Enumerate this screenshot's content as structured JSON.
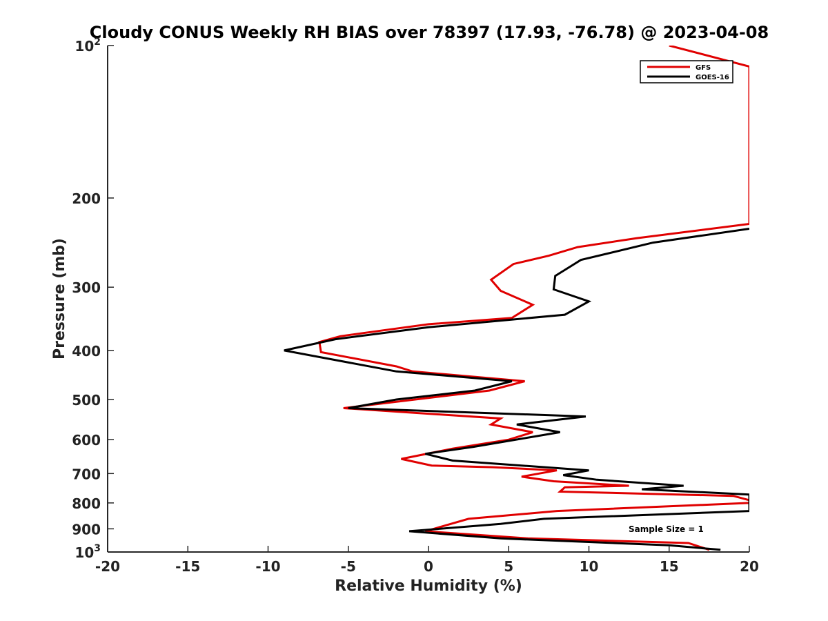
{
  "chart_data": {
    "type": "line",
    "title": "Cloudy CONUS Weekly RH BIAS over 78397 (17.93, -76.78) @ 2023-04-08",
    "xlabel": "Relative Humidity (%)",
    "ylabel": "Pressure (mb)",
    "xlim": [
      -20,
      20
    ],
    "ylim": [
      100,
      1000
    ],
    "y_scale": "log",
    "y_reversed": true,
    "grid": false,
    "x_ticks": [
      -20,
      -15,
      -10,
      -5,
      0,
      5,
      10,
      15,
      20
    ],
    "x_tick_labels": [
      "-20",
      "-15",
      "-10",
      "-5",
      "0",
      "5",
      "10",
      "15",
      "20"
    ],
    "y_ticks": [
      100,
      200,
      300,
      400,
      500,
      600,
      700,
      800,
      900,
      1000
    ],
    "y_tick_labels": [
      "10^2",
      "200",
      "300",
      "400",
      "500",
      "600",
      "700",
      "800",
      "900",
      "10^3"
    ],
    "legend": {
      "position": "top-right",
      "entries": [
        "GFS",
        "GOES-16"
      ]
    },
    "annotation": "Sample Size = 1",
    "series": [
      {
        "name": "GFS",
        "color": "#e00000",
        "points": [
          [
            15.0,
            100
          ],
          [
            20.0,
            110
          ],
          [
            20.0,
            225
          ],
          [
            13.0,
            240
          ],
          [
            9.3,
            250
          ],
          [
            7.5,
            260
          ],
          [
            5.3,
            270
          ],
          [
            3.9,
            290
          ],
          [
            4.5,
            305
          ],
          [
            6.5,
            325
          ],
          [
            5.2,
            345
          ],
          [
            0.0,
            355
          ],
          [
            -2.8,
            365
          ],
          [
            -5.5,
            375
          ],
          [
            -6.8,
            385
          ],
          [
            -6.7,
            403
          ],
          [
            -2.0,
            430
          ],
          [
            -1.0,
            440
          ],
          [
            6.0,
            460
          ],
          [
            3.8,
            480
          ],
          [
            -5.3,
            520
          ],
          [
            4.5,
            545
          ],
          [
            3.9,
            560
          ],
          [
            6.5,
            580
          ],
          [
            5.0,
            600
          ],
          [
            1.5,
            625
          ],
          [
            -1.7,
            655
          ],
          [
            0.2,
            675
          ],
          [
            4.0,
            680
          ],
          [
            8.0,
            690
          ],
          [
            5.8,
            710
          ],
          [
            7.8,
            725
          ],
          [
            12.5,
            740
          ],
          [
            8.5,
            745
          ],
          [
            8.2,
            760
          ],
          [
            19.0,
            775
          ],
          [
            20.0,
            790
          ],
          [
            20.0,
            800
          ],
          [
            8.0,
            830
          ],
          [
            2.5,
            860
          ],
          [
            -0.2,
            910
          ],
          [
            6.2,
            940
          ],
          [
            16.2,
            960
          ],
          [
            17.5,
            990
          ]
        ]
      },
      {
        "name": "GOES-16",
        "color": "#000000",
        "points": [
          [
            20.0,
            230
          ],
          [
            14.0,
            245
          ],
          [
            9.5,
            265
          ],
          [
            7.9,
            285
          ],
          [
            7.8,
            303
          ],
          [
            10.0,
            320
          ],
          [
            8.5,
            340
          ],
          [
            0.0,
            360
          ],
          [
            -5.8,
            380
          ],
          [
            -9.0,
            400
          ],
          [
            -2.0,
            440
          ],
          [
            5.2,
            460
          ],
          [
            2.9,
            480
          ],
          [
            -2.0,
            500
          ],
          [
            -5.0,
            520
          ],
          [
            9.8,
            540
          ],
          [
            5.5,
            560
          ],
          [
            8.2,
            580
          ],
          [
            2.8,
            620
          ],
          [
            -0.2,
            640
          ],
          [
            1.5,
            660
          ],
          [
            10.0,
            690
          ],
          [
            8.4,
            705
          ],
          [
            10.5,
            720
          ],
          [
            15.9,
            740
          ],
          [
            13.3,
            752
          ],
          [
            20.0,
            770
          ],
          [
            20.0,
            830
          ],
          [
            7.2,
            860
          ],
          [
            4.5,
            880
          ],
          [
            -1.2,
            910
          ],
          [
            4.5,
            940
          ],
          [
            15.0,
            970
          ],
          [
            18.2,
            990
          ]
        ]
      }
    ]
  }
}
